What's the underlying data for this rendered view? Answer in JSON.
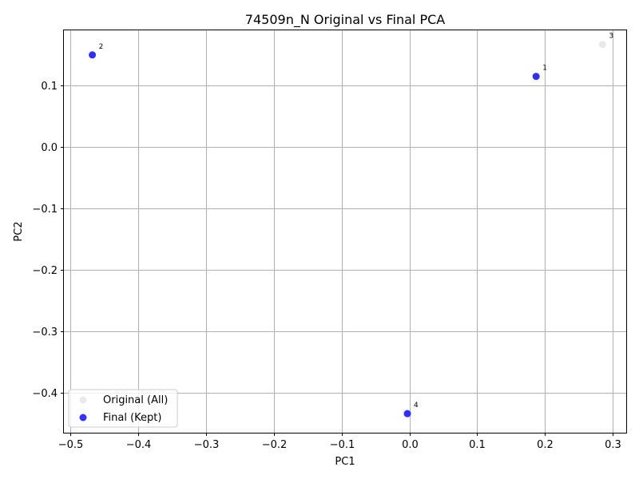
{
  "chart_data": {
    "type": "scatter",
    "title": "74509n_N Original vs Final PCA",
    "xlabel": "PC1",
    "ylabel": "PC2",
    "xlim": [
      -0.51,
      0.32
    ],
    "ylim": [
      -0.465,
      0.19
    ],
    "xticks": [
      -0.5,
      -0.4,
      -0.3,
      -0.2,
      -0.1,
      0.0,
      0.1,
      0.2,
      0.3
    ],
    "xtick_labels": [
      "−0.5",
      "−0.4",
      "−0.3",
      "−0.2",
      "−0.1",
      "0.0",
      "0.1",
      "0.2",
      "0.3"
    ],
    "yticks": [
      0.1,
      0.0,
      -0.1,
      -0.2,
      -0.3,
      -0.4
    ],
    "ytick_labels": [
      "0.1",
      "0.0",
      "−0.1",
      "−0.2",
      "−0.3",
      "−0.4"
    ],
    "grid": true,
    "legend_position": "lower-left",
    "series": [
      {
        "name": "Original (All)",
        "color": "#d3d3d3",
        "points": [
          {
            "x": 0.187,
            "y": 0.115,
            "label": "1"
          },
          {
            "x": -0.468,
            "y": 0.15,
            "label": "2"
          },
          {
            "x": 0.285,
            "y": 0.167,
            "label": "3"
          },
          {
            "x": -0.003,
            "y": -0.434,
            "label": "4"
          }
        ]
      },
      {
        "name": "Final (Kept)",
        "color": "#0000ff",
        "points": [
          {
            "x": 0.187,
            "y": 0.115,
            "label": "1"
          },
          {
            "x": -0.468,
            "y": 0.15,
            "label": "2"
          },
          {
            "x": -0.003,
            "y": -0.434,
            "label": "4"
          }
        ]
      }
    ]
  }
}
